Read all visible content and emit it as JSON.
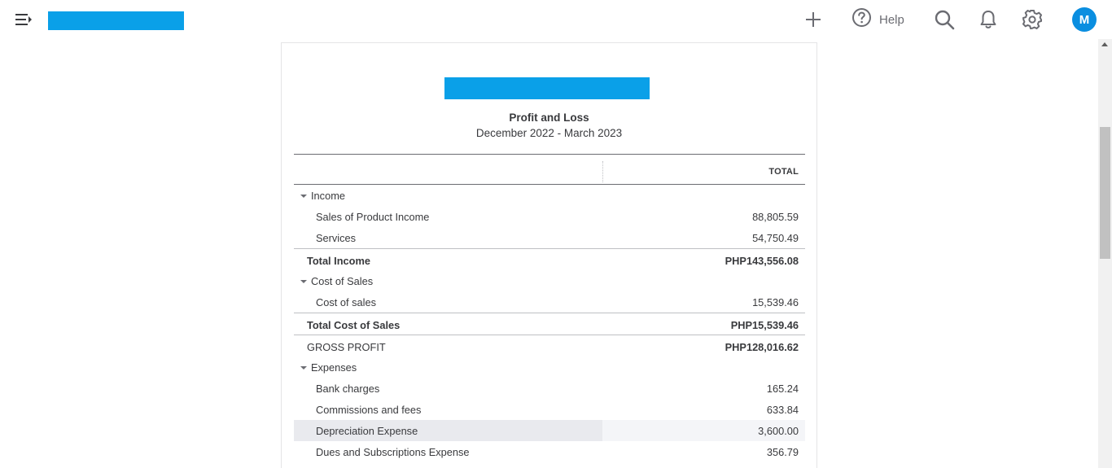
{
  "header": {
    "help_label": "Help",
    "avatar_initial": "M",
    "icons": [
      "menu-icon",
      "plus-icon",
      "help-icon",
      "search-icon",
      "bell-icon",
      "gear-icon"
    ]
  },
  "colors": {
    "brand_bar": "#0aa0e8",
    "avatar_bg": "#0a8ee0",
    "highlight_row": "#e9eaee"
  },
  "report": {
    "title": "Profit and Loss",
    "period": "December 2022 - March 2023",
    "column_header": "TOTAL",
    "rows": [
      {
        "label": "Income",
        "amount": "",
        "type": "section"
      },
      {
        "label": "Sales of Product Income",
        "amount": "88,805.59",
        "type": "item"
      },
      {
        "label": "Services",
        "amount": "54,750.49",
        "type": "item"
      },
      {
        "label": "Total Income",
        "amount": "PHP143,556.08",
        "type": "total"
      },
      {
        "label": "Cost of Sales",
        "amount": "",
        "type": "section"
      },
      {
        "label": "Cost of sales",
        "amount": "15,539.46",
        "type": "item"
      },
      {
        "label": "Total Cost of Sales",
        "amount": "PHP15,539.46",
        "type": "total"
      },
      {
        "label": "GROSS PROFIT",
        "amount": "PHP128,016.62",
        "type": "gross"
      },
      {
        "label": "Expenses",
        "amount": "",
        "type": "section"
      },
      {
        "label": "Bank charges",
        "amount": "165.24",
        "type": "item"
      },
      {
        "label": "Commissions and fees",
        "amount": "633.84",
        "type": "item"
      },
      {
        "label": "Depreciation Expense",
        "amount": "3,600.00",
        "type": "item",
        "highlighted": true
      },
      {
        "label": "Dues and Subscriptions Expense",
        "amount": "356.79",
        "type": "item"
      }
    ]
  }
}
